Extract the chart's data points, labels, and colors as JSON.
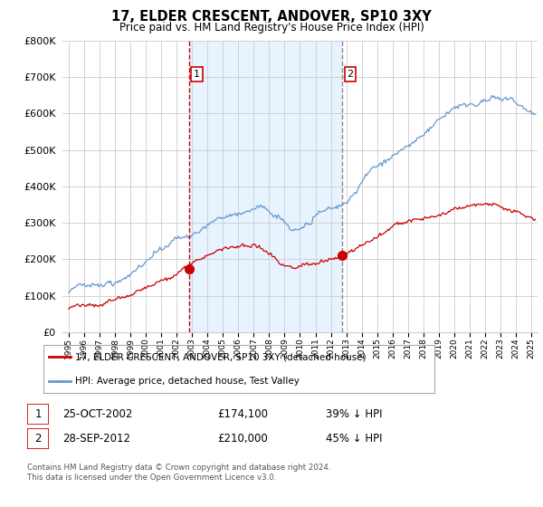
{
  "title": "17, ELDER CRESCENT, ANDOVER, SP10 3XY",
  "subtitle": "Price paid vs. HM Land Registry's House Price Index (HPI)",
  "legend_line1": "17, ELDER CRESCENT, ANDOVER, SP10 3XY (detached house)",
  "legend_line2": "HPI: Average price, detached house, Test Valley",
  "table_row1": [
    "1",
    "25-OCT-2002",
    "£174,100",
    "39% ↓ HPI"
  ],
  "table_row2": [
    "2",
    "28-SEP-2012",
    "£210,000",
    "45% ↓ HPI"
  ],
  "footnote": "Contains HM Land Registry data © Crown copyright and database right 2024.\nThis data is licensed under the Open Government Licence v3.0.",
  "vline1_year": 2002.82,
  "vline2_year": 2012.75,
  "red_color": "#cc0000",
  "blue_color": "#6699cc",
  "vline1_color": "#cc0000",
  "vline2_color": "#888888",
  "shade_color": "#ddeeff",
  "ylim": [
    0,
    800000
  ],
  "yticks": [
    0,
    100000,
    200000,
    300000,
    400000,
    500000,
    600000,
    700000,
    800000
  ],
  "xlim_start": 1994.6,
  "xlim_end": 2025.4,
  "sale1_year": 2002.82,
  "sale1_price": 174100,
  "sale2_year": 2012.75,
  "sale2_price": 210000,
  "hpi_seed": 42,
  "red_seed": 99
}
